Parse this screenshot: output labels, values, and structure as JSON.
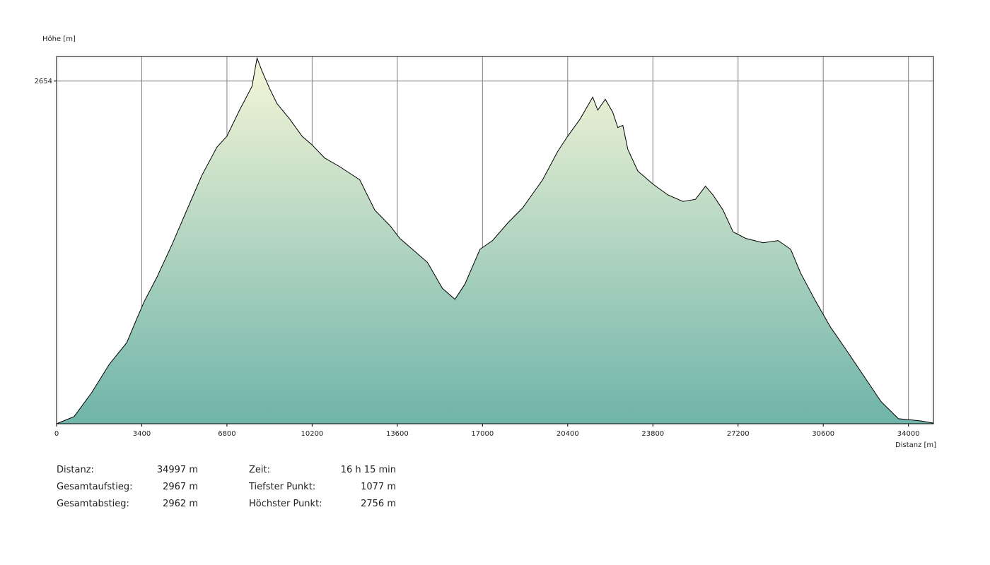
{
  "chart_data": {
    "type": "area",
    "ylabel": "Höhe [m]",
    "xlabel": "Distanz [m]",
    "xlim": [
      0,
      34997
    ],
    "ylim": [
      1077,
      2767
    ],
    "x_ticks": [
      "0",
      "3400",
      "6800",
      "10200",
      "13600",
      "17000",
      "20400",
      "23800",
      "27200",
      "30600",
      "34000"
    ],
    "y_ticks": [
      "2654"
    ],
    "grid": true,
    "colors": {
      "top": "#f6f6d8",
      "bottom": "#6fb4aa",
      "line": "#000000",
      "grid": "#808080"
    },
    "x": [
      0,
      700,
      1400,
      2100,
      2800,
      3200,
      3500,
      4000,
      4600,
      5200,
      5800,
      6400,
      6800,
      7300,
      7800,
      8000,
      8200,
      8500,
      8800,
      9300,
      9800,
      10200,
      10700,
      11300,
      12100,
      12700,
      13300,
      13700,
      14200,
      14800,
      15400,
      15900,
      16300,
      16900,
      17400,
      18000,
      18600,
      19400,
      20000,
      20400,
      20900,
      21400,
      21600,
      21900,
      22200,
      22400,
      22600,
      22800,
      23200,
      23800,
      24400,
      25000,
      25500,
      25900,
      26200,
      26600,
      27000,
      27500,
      28200,
      28800,
      29300,
      29700,
      30300,
      30900,
      31500,
      32200,
      32900,
      33600,
      34100,
      34500,
      34997
    ],
    "y": [
      1077,
      1110,
      1220,
      1350,
      1450,
      1560,
      1640,
      1750,
      1900,
      2060,
      2220,
      2350,
      2400,
      2520,
      2630,
      2760,
      2700,
      2620,
      2550,
      2480,
      2400,
      2360,
      2300,
      2260,
      2200,
      2060,
      1990,
      1930,
      1880,
      1820,
      1700,
      1650,
      1720,
      1880,
      1920,
      2000,
      2070,
      2200,
      2330,
      2400,
      2480,
      2580,
      2520,
      2570,
      2510,
      2440,
      2450,
      2340,
      2240,
      2180,
      2130,
      2100,
      2110,
      2170,
      2130,
      2060,
      1960,
      1930,
      1910,
      1920,
      1880,
      1770,
      1640,
      1520,
      1420,
      1300,
      1180,
      1100,
      1095,
      1090,
      1080
    ]
  },
  "stats": {
    "distance": {
      "label": "Distanz:",
      "value": "34997 m"
    },
    "ascent": {
      "label": "Gesamtaufstieg:",
      "value": "2967 m"
    },
    "descent": {
      "label": "Gesamtabstieg:",
      "value": "2962 m"
    },
    "time": {
      "label": "Zeit:",
      "value": "16 h 15 min"
    },
    "lowest": {
      "label": "Tiefster Punkt:",
      "value": "1077 m"
    },
    "highest": {
      "label": "Höchster Punkt:",
      "value": "2756 m"
    }
  }
}
